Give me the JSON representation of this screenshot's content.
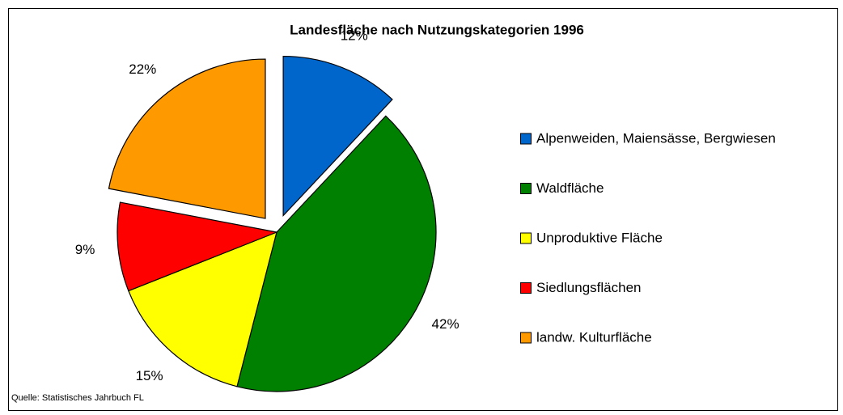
{
  "chart_data": {
    "type": "pie",
    "title": "Landesfläche nach Nutzungskategorien 1996",
    "categories": [
      "Alpenweiden, Maiensässe, Bergwiesen",
      "Waldfläche",
      "Unproduktive Fläche",
      "Siedlungsflächen",
      "landw. Kulturfläche"
    ],
    "values": [
      12,
      42,
      15,
      9,
      22
    ],
    "value_labels": [
      "12%",
      "42%",
      "15%",
      "9%",
      "22%"
    ],
    "colors": [
      "#0066cc",
      "#008000",
      "#ffff00",
      "#ff0000",
      "#ff9900"
    ],
    "exploded": [
      true,
      false,
      false,
      false,
      true
    ],
    "legend": "right",
    "source": "Quelle: Statistisches Jahrbuch FL"
  }
}
